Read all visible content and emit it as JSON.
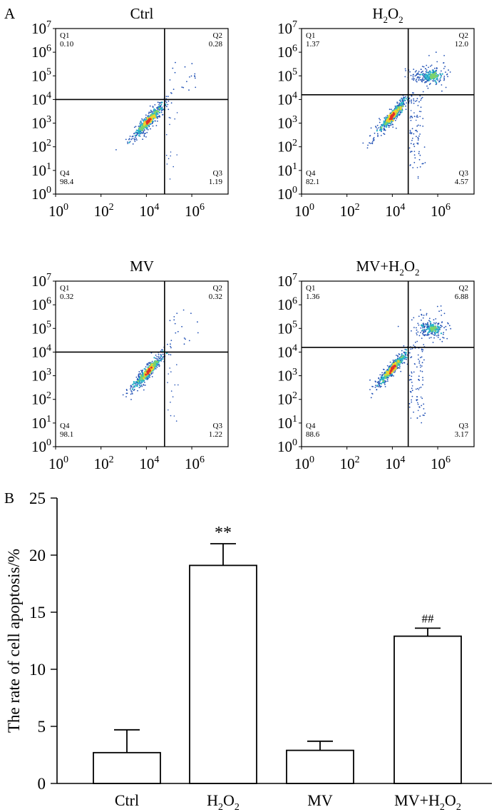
{
  "figure": {
    "panel_a_label": "A",
    "panel_b_label": "B"
  },
  "chart_data": [
    {
      "type": "scatter",
      "subtype": "flow-cytometry-quadrant",
      "title": "Ctrl",
      "x_ticks": {
        "base": "10",
        "exponents": [
          "0",
          "2",
          "4",
          "6"
        ]
      },
      "y_ticks": {
        "base": "10",
        "exponents": [
          "0",
          "1",
          "2",
          "3",
          "4",
          "5",
          "6",
          "7"
        ]
      },
      "x_scale": "log10",
      "xlim_exp": [
        0,
        7.6
      ],
      "y_scale": "log10",
      "ylim_exp": [
        0,
        7
      ],
      "gate_x_exp": 4.8,
      "gate_y_exp": 4.0,
      "quadrants": [
        {
          "label": "Q1",
          "value": "0.10"
        },
        {
          "label": "Q2",
          "value": "0.28"
        },
        {
          "label": "Q3",
          "value": "1.19"
        },
        {
          "label": "Q4",
          "value": "98.4"
        }
      ],
      "main_population": {
        "center_exp": [
          4.1,
          3.1
        ]
      },
      "secondary_population": null
    },
    {
      "type": "scatter",
      "subtype": "flow-cytometry-quadrant",
      "title": "H2O2",
      "title_parts": {
        "pre": "H",
        "sub1": "2",
        "mid": "O",
        "sub2": "2",
        "post": ""
      },
      "x_ticks": {
        "base": "10",
        "exponents": [
          "0",
          "2",
          "4",
          "6"
        ]
      },
      "y_ticks": {
        "base": "10",
        "exponents": [
          "0",
          "1",
          "2",
          "3",
          "4",
          "5",
          "6",
          "7"
        ]
      },
      "x_scale": "log10",
      "xlim_exp": [
        0,
        7.6
      ],
      "y_scale": "log10",
      "ylim_exp": [
        0,
        7
      ],
      "gate_x_exp": 4.7,
      "gate_y_exp": 4.2,
      "quadrants": [
        {
          "label": "Q1",
          "value": "1.37"
        },
        {
          "label": "Q2",
          "value": "12.0"
        },
        {
          "label": "Q3",
          "value": "4.57"
        },
        {
          "label": "Q4",
          "value": "82.1"
        }
      ],
      "main_population": {
        "center_exp": [
          4.0,
          3.3
        ]
      },
      "secondary_population": {
        "center_exp": [
          5.6,
          5.0
        ]
      }
    },
    {
      "type": "scatter",
      "subtype": "flow-cytometry-quadrant",
      "title": "MV",
      "x_ticks": {
        "base": "10",
        "exponents": [
          "0",
          "2",
          "4",
          "6"
        ]
      },
      "y_ticks": {
        "base": "10",
        "exponents": [
          "0",
          "1",
          "2",
          "3",
          "4",
          "5",
          "6",
          "7"
        ]
      },
      "x_scale": "log10",
      "xlim_exp": [
        0,
        7.6
      ],
      "y_scale": "log10",
      "ylim_exp": [
        0,
        7
      ],
      "gate_x_exp": 4.8,
      "gate_y_exp": 4.0,
      "quadrants": [
        {
          "label": "Q1",
          "value": "0.32"
        },
        {
          "label": "Q2",
          "value": "0.32"
        },
        {
          "label": "Q3",
          "value": "1.22"
        },
        {
          "label": "Q4",
          "value": "98.1"
        }
      ],
      "main_population": {
        "center_exp": [
          4.1,
          3.2
        ]
      },
      "secondary_population": null
    },
    {
      "type": "scatter",
      "subtype": "flow-cytometry-quadrant",
      "title": "MV+H2O2",
      "title_parts": {
        "pre": "MV+H",
        "sub1": "2",
        "mid": "O",
        "sub2": "2",
        "post": ""
      },
      "x_ticks": {
        "base": "10",
        "exponents": [
          "0",
          "2",
          "4",
          "6"
        ]
      },
      "y_ticks": {
        "base": "10",
        "exponents": [
          "0",
          "1",
          "2",
          "3",
          "4",
          "5",
          "6",
          "7"
        ]
      },
      "x_scale": "log10",
      "xlim_exp": [
        0,
        7.6
      ],
      "y_scale": "log10",
      "ylim_exp": [
        0,
        7
      ],
      "gate_x_exp": 4.7,
      "gate_y_exp": 4.2,
      "quadrants": [
        {
          "label": "Q1",
          "value": "1.36"
        },
        {
          "label": "Q2",
          "value": "6.88"
        },
        {
          "label": "Q3",
          "value": "3.17"
        },
        {
          "label": "Q4",
          "value": "88.6"
        }
      ],
      "main_population": {
        "center_exp": [
          4.0,
          3.3
        ]
      },
      "secondary_population": {
        "center_exp": [
          5.6,
          5.0
        ]
      }
    },
    {
      "type": "bar",
      "title": "",
      "categories": [
        "Ctrl",
        "H2O2",
        "MV",
        "MV+H2O2"
      ],
      "category_parts": [
        {
          "pre": "Ctrl"
        },
        {
          "pre": "H",
          "sub1": "2",
          "mid": "O",
          "sub2": "2"
        },
        {
          "pre": "MV"
        },
        {
          "pre": "MV+H",
          "sub1": "2",
          "mid": "O",
          "sub2": "2"
        }
      ],
      "values": [
        2.7,
        19.1,
        2.9,
        12.9
      ],
      "errors": [
        2.0,
        1.9,
        0.8,
        0.7
      ],
      "annotations": [
        "",
        "**",
        "",
        "##"
      ],
      "ylabel": "The rate of cell apoptosis/%",
      "xlabel": "",
      "ylim": [
        0,
        25
      ],
      "yticks": [
        "0",
        "5",
        "10",
        "15",
        "20",
        "25"
      ],
      "bar_fill": "#ffffff",
      "bar_stroke": "#000000"
    }
  ],
  "colors": {
    "density_low": "#1f4fb4",
    "density_mid": "#29b6c9",
    "density_mid2": "#7fd36a",
    "density_high": "#f2d32a",
    "density_peak": "#e0302a",
    "gate_line": "#000000"
  }
}
